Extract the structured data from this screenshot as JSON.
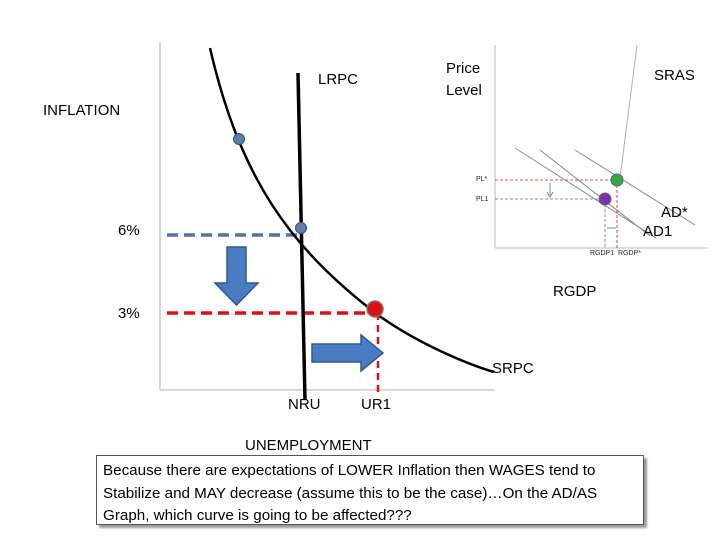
{
  "phillips": {
    "y_axis_label": "INFLATION",
    "x_axis_label": "UNEMPLOYMENT",
    "lrpc_label": "LRPC",
    "srpc_label": "SRPC",
    "tick_6": "6%",
    "tick_3": "3%",
    "nru_label": "NRU",
    "ur1_label": "UR1"
  },
  "adas": {
    "y_axis_label_line1": "Price",
    "y_axis_label_line2": "Level",
    "sras_label": "SRAS",
    "ad_star_label": "AD*",
    "ad1_label": "AD1",
    "pl_star_label": "PL*",
    "pl1_label": "PL1",
    "rgdp1_label": "RGDP1",
    "rgdp_star_label": "RGDP*",
    "x_axis_label": "RGDP"
  },
  "caption": {
    "text": "Because there are expectations of LOWER Inflation then  WAGES tend to Stabilize and MAY decrease (assume this to be the case)…On the AD/AS Graph, which curve is going to be affected???"
  },
  "colors": {
    "blue_dash": "#4a74b4",
    "red_dash": "#e01010",
    "arrow_blue": "#4a7cc2",
    "green_point": "#2eaa4a",
    "purple_point": "#7a30b8",
    "red_point": "#e01010"
  }
}
